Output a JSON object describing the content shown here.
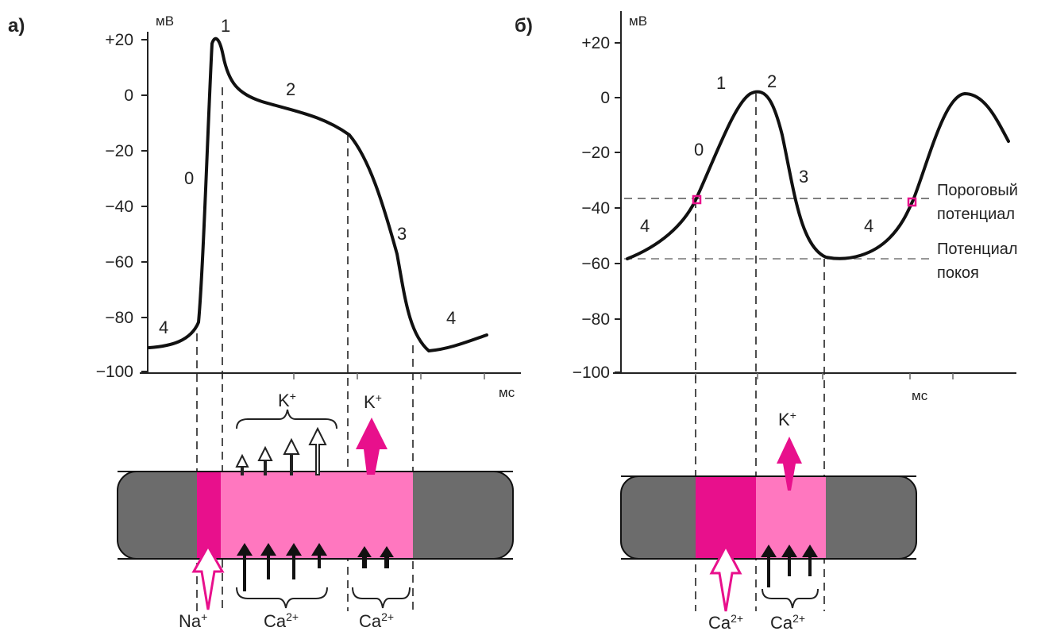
{
  "panel_a": {
    "label": "а)",
    "y_unit": "мВ",
    "x_unit": "мс",
    "y_ticks": [
      "+20",
      "0",
      "−20",
      "−40",
      "−60",
      "−80",
      "−100"
    ],
    "phases": [
      "0",
      "1",
      "2",
      "3",
      "4",
      "4"
    ],
    "ions": {
      "na": "Na",
      "na_sup": "+",
      "ca_in_1": "Ca",
      "ca_in_1_sup": "2+",
      "ca_in_2": "Ca",
      "ca_in_2_sup": "2+",
      "k_slow": "K",
      "k_slow_sup": "+",
      "k_fast": "K",
      "k_fast_sup": "+"
    },
    "colors": {
      "na_channel": "#e8108c",
      "plateau": "#ff77bf",
      "cell": "#6c6c6c"
    }
  },
  "panel_b": {
    "label": "б)",
    "y_unit": "мВ",
    "x_unit": "мс",
    "y_ticks": [
      "+20",
      "0",
      "−20",
      "−40",
      "−60",
      "−80",
      "−100"
    ],
    "phases": [
      "0",
      "1",
      "2",
      "3",
      "4",
      "4"
    ],
    "threshold_label": [
      "Пороговый",
      "потенциал"
    ],
    "resting_label": [
      "Потенциал",
      "покоя"
    ],
    "ions": {
      "ca_fast": "Ca",
      "ca_fast_sup": "2+",
      "ca_slow": "Ca",
      "ca_slow_sup": "2+",
      "k_out": "K",
      "k_out_sup": "+"
    },
    "colors": {
      "ca_channel": "#e8108c",
      "repol": "#ff77bf",
      "cell": "#6c6c6c",
      "marker": "#e8108c"
    }
  },
  "chart_data": [
    {
      "type": "line",
      "title": "",
      "ylabel": "мВ",
      "xlabel": "мс",
      "ylim": [
        -100,
        20
      ],
      "series": [
        {
          "values_mV": [
            -91,
            -88,
            -82,
            19,
            12,
            0,
            -3,
            -6,
            -8,
            -12,
            -20,
            -60,
            -88,
            -92,
            -90,
            -86
          ]
        }
      ]
    },
    {
      "type": "line",
      "title": "",
      "ylabel": "мВ",
      "xlabel": "мс",
      "ylim": [
        -100,
        20
      ],
      "threshold_mV": -37,
      "resting_mV": -58,
      "series": [
        {
          "values_mV": [
            -57,
            -48,
            -37,
            -15,
            2,
            -10,
            -37,
            -56,
            -58,
            -55,
            -37,
            -10,
            1,
            -15
          ]
        }
      ]
    }
  ]
}
